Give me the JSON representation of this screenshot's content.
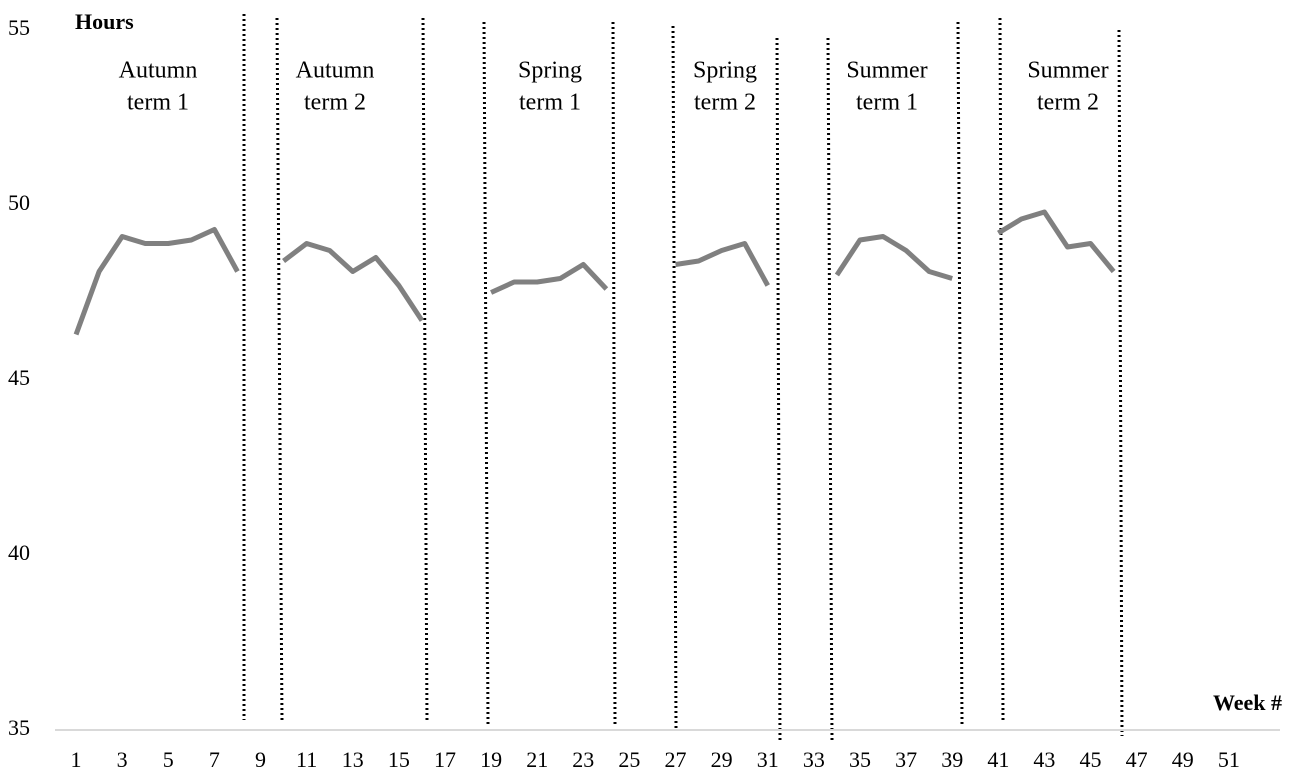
{
  "chart_data": {
    "type": "line",
    "y_label": "Hours",
    "x_label": "Week #",
    "x": [
      1,
      2,
      3,
      4,
      5,
      6,
      7,
      8,
      9,
      10,
      11,
      12,
      13,
      14,
      15,
      16,
      17,
      18,
      19,
      20,
      21,
      22,
      23,
      24,
      25,
      26,
      27,
      28,
      29,
      30,
      31,
      32,
      33,
      34,
      35,
      36,
      37,
      38,
      39,
      40,
      41,
      42,
      43,
      44,
      45,
      46,
      47,
      48,
      49,
      50,
      51,
      52
    ],
    "series": [
      {
        "color": "#808080",
        "values": [
          46.3,
          48.1,
          49.1,
          48.9,
          48.9,
          49.0,
          49.3,
          48.1,
          null,
          48.4,
          48.9,
          48.7,
          48.1,
          48.5,
          47.7,
          46.7,
          null,
          null,
          47.5,
          47.8,
          47.8,
          47.9,
          48.3,
          47.6,
          null,
          null,
          48.3,
          48.4,
          48.7,
          48.9,
          47.7,
          null,
          null,
          48.0,
          49.0,
          49.1,
          48.7,
          48.1,
          47.9,
          null,
          49.2,
          49.6,
          49.8,
          48.8,
          48.9,
          48.1,
          null,
          null,
          null,
          null,
          null,
          null
        ]
      }
    ],
    "xlim": [
      0,
      53
    ],
    "xticks": [
      1,
      3,
      5,
      7,
      9,
      11,
      13,
      15,
      17,
      19,
      21,
      23,
      25,
      27,
      29,
      31,
      33,
      35,
      37,
      39,
      41,
      43,
      45,
      47,
      49,
      51
    ],
    "ylim": [
      35,
      55
    ],
    "yticks": [
      35,
      40,
      45,
      50,
      55
    ],
    "grid": false,
    "annotations": [
      [
        "Autumn",
        "term 1"
      ],
      [
        "Autumn",
        "term 2"
      ],
      [
        "Spring",
        "term 1"
      ],
      [
        "Spring",
        "term 2"
      ],
      [
        "Summer",
        "term 1"
      ],
      [
        "Summer",
        "term 2"
      ]
    ]
  }
}
